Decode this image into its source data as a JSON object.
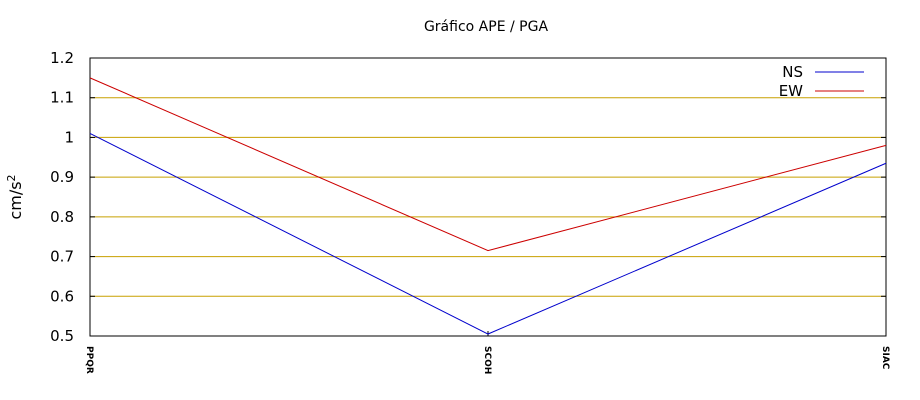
{
  "chart_data": {
    "type": "line",
    "title": "Gráfico  APE / PGA",
    "ylabel": "cm/s",
    "ylabel_superscript": "2",
    "xlabel": "",
    "categories": [
      "PPQR",
      "SCOH",
      "SIAC"
    ],
    "ylim": [
      0.5,
      1.2
    ],
    "yticks": [
      "0.5",
      "0.6",
      "0.7",
      "0.8",
      "0.9",
      "1",
      "1.1",
      "1.2"
    ],
    "grid": "horizontal",
    "legend_position": "top-right",
    "series": [
      {
        "name": "NS",
        "color": "#0000cc",
        "values": [
          1.01,
          0.505,
          0.935
        ]
      },
      {
        "name": "EW",
        "color": "#cc0000",
        "values": [
          1.15,
          0.715,
          0.98
        ]
      }
    ],
    "colors": {
      "grid": "#c8a000",
      "frame": "#000000"
    }
  }
}
